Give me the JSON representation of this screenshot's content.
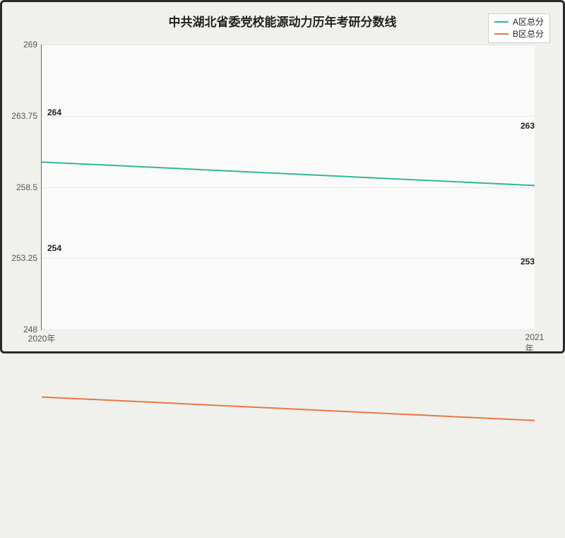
{
  "type": "line",
  "title": "中共湖北省委党校能源动力历年考研分数线",
  "title_fontsize": 17,
  "title_color": "#222222",
  "background_color": "#f0f0ed",
  "plot_background": "#fafafa",
  "grid_color": "#e6e6e6",
  "axis_color": "#666666",
  "tick_color": "#555555",
  "tick_fontsize": 12,
  "label_fontsize": 12,
  "label_color": "#222222",
  "x": {
    "categories": [
      "2020年",
      "2021年"
    ],
    "positions_pct": [
      0,
      100
    ]
  },
  "y": {
    "min": 248,
    "max": 269,
    "ticks": [
      248,
      253.25,
      258.5,
      263.75,
      269
    ]
  },
  "legend": {
    "position": "top-right",
    "fontsize": 12,
    "items": [
      {
        "label": "A区总分",
        "color": "#2fb89a"
      },
      {
        "label": "B区总分",
        "color": "#e97743"
      }
    ]
  },
  "series": [
    {
      "name": "A区总分",
      "color": "#2fb89a",
      "line_width": 2,
      "values": [
        264,
        263
      ],
      "point_labels": [
        "264",
        "263"
      ]
    },
    {
      "name": "B区总分",
      "color": "#e97743",
      "line_width": 2,
      "values": [
        254,
        253
      ],
      "point_labels": [
        "254",
        "253"
      ]
    }
  ]
}
